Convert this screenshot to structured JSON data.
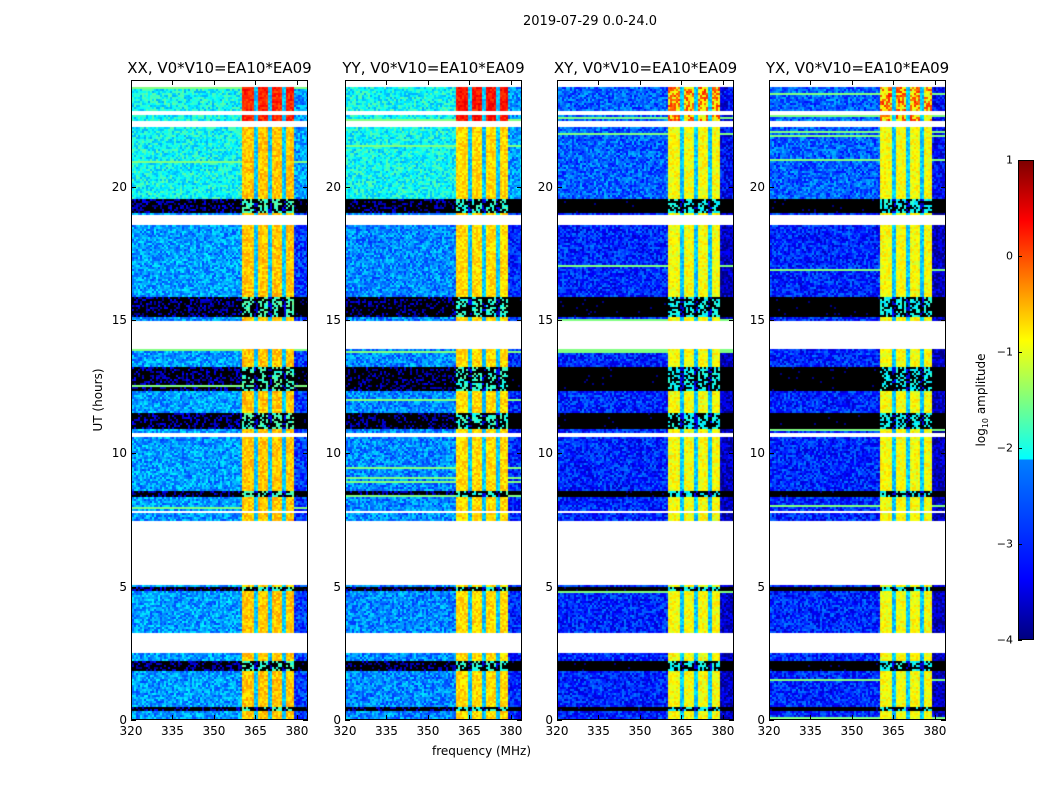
{
  "chart_data": {
    "type": "heatmap",
    "title": "2019-07-29 0.0-24.0",
    "xlabel": "frequency (MHz)",
    "ylabel": "UT (hours)",
    "xlim": [
      320,
      384
    ],
    "ylim": [
      0,
      24
    ],
    "xticks": [
      "320",
      "335",
      "350",
      "365",
      "380"
    ],
    "yticks": [
      "0",
      "5",
      "10",
      "15",
      "20"
    ],
    "panels": [
      {
        "title": "XX, V0*V10=EA10*EA09",
        "base_level": -2.6,
        "top_level": -2.1,
        "rfi_level": -0.6,
        "rfi_top_level": 0.2
      },
      {
        "title": "YY, V0*V10=EA10*EA09",
        "base_level": -2.7,
        "top_level": -2.1,
        "rfi_level": -0.7,
        "rfi_top_level": 0.3
      },
      {
        "title": "XY, V0*V10=EA10*EA09",
        "base_level": -3.2,
        "top_level": -2.9,
        "rfi_level": -0.9,
        "rfi_top_level": 0.0
      },
      {
        "title": "YX, V0*V10=EA10*EA09",
        "base_level": -3.2,
        "top_level": -2.9,
        "rfi_level": -0.9,
        "rfi_top_level": 0.0
      }
    ],
    "rfi_band_mhz": [
      360,
      379
    ],
    "rfi_gaps_mhz": [
      365,
      370,
      375
    ],
    "flagged_hours": [
      [
        2.62,
        3.37
      ],
      [
        5.15,
        7.5
      ],
      [
        7.8,
        7.95
      ],
      [
        10.65,
        10.85
      ],
      [
        14.0,
        15.0
      ],
      [
        18.65,
        19.0
      ],
      [
        22.35,
        22.5
      ],
      [
        22.8,
        22.9
      ],
      [
        23.85,
        24.0
      ]
    ],
    "low_gain_hours": [
      [
        0.4,
        0.6
      ],
      [
        1.9,
        2.3
      ],
      [
        4.9,
        5.1
      ],
      [
        8.4,
        8.7
      ],
      [
        11.0,
        11.6
      ],
      [
        12.4,
        13.3
      ],
      [
        15.2,
        15.9
      ],
      [
        19.1,
        19.6
      ]
    ],
    "colorbar": {
      "label": "log10 amplitude",
      "ticks": [
        "1",
        "0",
        "−1",
        "−2",
        "−3",
        "−4"
      ],
      "range": [
        -4,
        1
      ],
      "colormap": "jet"
    }
  }
}
